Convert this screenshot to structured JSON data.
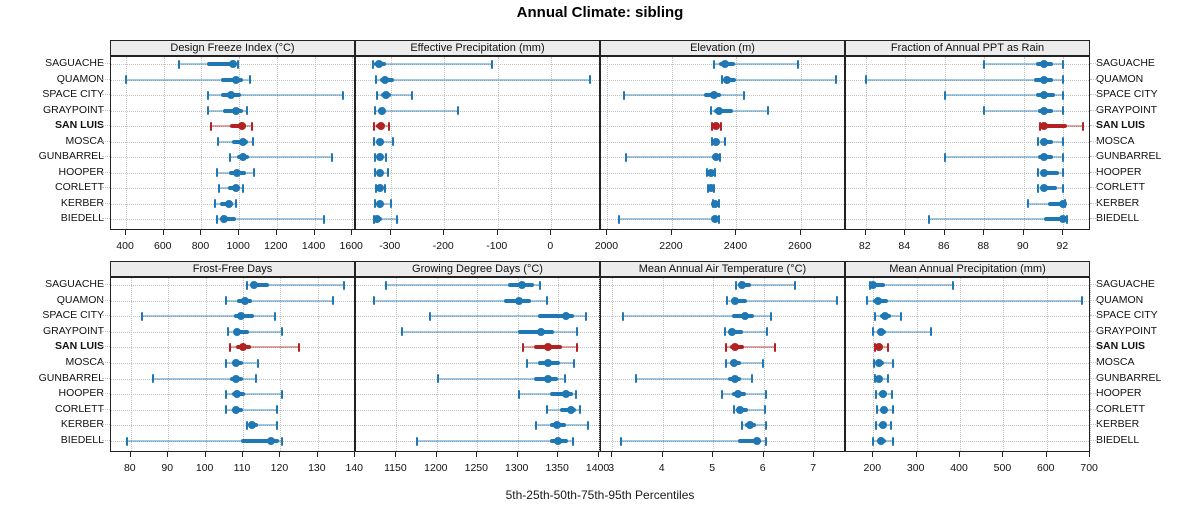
{
  "title": "Annual Climate: sibling",
  "footer": "5th-25th-50th-75th-95th Percentiles",
  "highlight_site": "SAN LUIS",
  "colors": {
    "blue": "#1f77b4",
    "blue_light": "rgba(31,119,180,0.4)",
    "red": "#b22222",
    "red_light": "rgba(178,34,34,0.4)",
    "strip_bg": "#ececec",
    "panel_border": "#222222",
    "grid": "#c3c3c3"
  },
  "sites": [
    "SAGUACHE",
    "QUAMON",
    "SPACE CITY",
    "GRAYPOINT",
    "SAN LUIS",
    "MOSCA",
    "GUNBARREL",
    "HOOPER",
    "CORLETT",
    "KERBER",
    "BIEDELL"
  ],
  "chart_data": [
    {
      "type": "dotplot-percentiles",
      "row": 0,
      "col": 0,
      "title": "Design Freeze Index (°C)",
      "ticks": [
        400,
        600,
        800,
        1000,
        1200,
        1400,
        1600
      ],
      "xlim": [
        320,
        1620
      ],
      "percentile_labels": [
        "p5",
        "p25",
        "p50",
        "p75",
        "p95"
      ],
      "values": [
        [
          680,
          830,
          965,
          985,
          995
        ],
        [
          400,
          905,
          985,
          1020,
          1060
        ],
        [
          835,
          905,
          955,
          1010,
          1550
        ],
        [
          835,
          915,
          985,
          1020,
          1040
        ],
        [
          850,
          950,
          1015,
          1035,
          1070
        ],
        [
          890,
          960,
          1020,
          1045,
          1075
        ],
        [
          950,
          990,
          1020,
          1050,
          1495
        ],
        [
          885,
          945,
          990,
          1035,
          1080
        ],
        [
          895,
          940,
          985,
          1005,
          1020
        ],
        [
          870,
          900,
          945,
          970,
          985
        ],
        [
          885,
          900,
          920,
          985,
          1450
        ]
      ]
    },
    {
      "type": "dotplot-percentiles",
      "row": 0,
      "col": 1,
      "title": "Effective Precipitation (mm)",
      "ticks": [
        -300,
        -200,
        -100,
        0
      ],
      "xlim": [
        -365,
        93
      ],
      "values": [
        [
          -334,
          -331,
          -322,
          -309,
          -111
        ],
        [
          -327,
          -320,
          -311,
          -294,
          72
        ],
        [
          -325,
          -318,
          -309,
          -300,
          -261
        ],
        [
          -330,
          -324,
          -317,
          -308,
          -174
        ],
        [
          -332,
          -327,
          -319,
          -312,
          -303
        ],
        [
          -331,
          -326,
          -320,
          -313,
          -296
        ],
        [
          -330,
          -325,
          -320,
          -315,
          -309
        ],
        [
          -329,
          -324,
          -320,
          -314,
          -306
        ],
        [
          -328,
          -325,
          -321,
          -316,
          -310
        ],
        [
          -329,
          -325,
          -321,
          -314,
          -300
        ],
        [
          -332,
          -329,
          -325,
          -316,
          -289
        ]
      ]
    },
    {
      "type": "dotplot-percentiles",
      "row": 0,
      "col": 2,
      "title": "Elevation (m)",
      "ticks": [
        2000,
        2200,
        2400,
        2600
      ],
      "xlim": [
        1980,
        2740
      ],
      "values": [
        [
          2330,
          2345,
          2365,
          2395,
          2590
        ],
        [
          2355,
          2362,
          2371,
          2400,
          2710
        ],
        [
          2052,
          2300,
          2330,
          2352,
          2425
        ],
        [
          2320,
          2332,
          2347,
          2390,
          2497
        ],
        [
          2325,
          2330,
          2337,
          2345,
          2352
        ],
        [
          2325,
          2331,
          2337,
          2348,
          2366
        ],
        [
          2057,
          2325,
          2337,
          2344,
          2350
        ],
        [
          2308,
          2314,
          2321,
          2329,
          2335
        ],
        [
          2312,
          2316,
          2321,
          2327,
          2332
        ],
        [
          2326,
          2330,
          2335,
          2340,
          2345
        ],
        [
          2036,
          2325,
          2335,
          2341,
          2347
        ]
      ]
    },
    {
      "type": "dotplot-percentiles",
      "row": 0,
      "col": 3,
      "title": "Fraction of Annual PPT as Rain",
      "ticks": [
        82,
        84,
        86,
        88,
        90,
        92
      ],
      "xlim": [
        81,
        93.4
      ],
      "values": [
        [
          88,
          90.6,
          91,
          91.5,
          92
        ],
        [
          82,
          90.5,
          91,
          91.5,
          92
        ],
        [
          86,
          90.6,
          91,
          91.6,
          92
        ],
        [
          88,
          90.7,
          91,
          91.5,
          92
        ],
        [
          90.8,
          90.9,
          91,
          92.2,
          93
        ],
        [
          90.7,
          90.9,
          91,
          91.5,
          92
        ],
        [
          86,
          90.7,
          91,
          91.5,
          92
        ],
        [
          90.7,
          90.9,
          91,
          91.8,
          92
        ],
        [
          90.7,
          90.9,
          91,
          91.7,
          92
        ],
        [
          90.2,
          91.2,
          92,
          92,
          92.1
        ],
        [
          85.2,
          91,
          92,
          92.1,
          92.2
        ]
      ]
    },
    {
      "type": "dotplot-percentiles",
      "row": 1,
      "col": 0,
      "title": "Frost-Free Days",
      "ticks": [
        80,
        90,
        100,
        110,
        120,
        130,
        140
      ],
      "xlim": [
        74.7,
        140.2
      ],
      "values": [
        [
          111,
          112,
          113,
          117,
          137
        ],
        [
          105.5,
          108.5,
          110.5,
          112.5,
          134
        ],
        [
          83,
          107.5,
          109.5,
          113,
          118.5
        ],
        [
          106,
          107.5,
          108.5,
          111.5,
          120.5
        ],
        [
          106.5,
          108,
          110,
          112,
          125
        ],
        [
          105.5,
          107,
          108,
          110,
          114
        ],
        [
          86,
          106.5,
          108,
          110,
          113.5
        ],
        [
          105.5,
          107,
          108.5,
          110.5,
          120.5
        ],
        [
          105.5,
          107,
          108,
          110,
          119
        ],
        [
          111,
          112,
          112.5,
          114,
          119
        ],
        [
          79,
          109.5,
          117.5,
          119.5,
          120.5
        ]
      ]
    },
    {
      "type": "dotplot-percentiles",
      "row": 1,
      "col": 1,
      "title": "Growing Degree Days (°C)",
      "ticks": [
        1150,
        1200,
        1250,
        1300,
        1350,
        1400
      ],
      "xlim": [
        1100,
        1403
      ],
      "values": [
        [
          1137,
          1288,
          1305,
          1320,
          1327
        ],
        [
          1122,
          1283,
          1301,
          1317,
          1336
        ],
        [
          1191,
          1325,
          1360,
          1370,
          1384
        ],
        [
          1157,
          1300,
          1329,
          1345,
          1373
        ],
        [
          1307,
          1320,
          1338,
          1355,
          1373
        ],
        [
          1311,
          1325,
          1338,
          1352,
          1369
        ],
        [
          1201,
          1320,
          1337,
          1350,
          1358
        ],
        [
          1301,
          1340,
          1360,
          1368,
          1372
        ],
        [
          1336,
          1352,
          1366,
          1372,
          1377
        ],
        [
          1323,
          1340,
          1348,
          1360,
          1387
        ],
        [
          1176,
          1340,
          1350,
          1362,
          1368
        ]
      ]
    },
    {
      "type": "dotplot-percentiles",
      "row": 1,
      "col": 2,
      "title": "Mean Annual Air Temperature (°C)",
      "ticks": [
        3,
        4,
        5,
        6,
        7
      ],
      "xlim": [
        2.78,
        7.63
      ],
      "values": [
        [
          5.45,
          5.5,
          5.57,
          5.75,
          6.63
        ],
        [
          5.28,
          5.35,
          5.43,
          5.68,
          7.46
        ],
        [
          3.21,
          5.38,
          5.64,
          5.81,
          6.15
        ],
        [
          5.23,
          5.3,
          5.38,
          5.6,
          6.06
        ],
        [
          5.26,
          5.33,
          5.44,
          5.62,
          6.22
        ],
        [
          5.25,
          5.33,
          5.41,
          5.55,
          5.99
        ],
        [
          3.48,
          5.3,
          5.43,
          5.55,
          5.76
        ],
        [
          5.18,
          5.38,
          5.5,
          5.65,
          6.04
        ],
        [
          5.41,
          5.47,
          5.53,
          5.7,
          6.02
        ],
        [
          5.57,
          5.64,
          5.72,
          5.85,
          6.05
        ],
        [
          3.18,
          5.5,
          5.86,
          5.95,
          6.05
        ]
      ]
    },
    {
      "type": "dotplot-percentiles",
      "row": 1,
      "col": 3,
      "title": "Mean Annual Precipitation (mm)",
      "ticks": [
        200,
        300,
        400,
        500,
        600,
        700
      ],
      "xlim": [
        137,
        702
      ],
      "values": [
        [
          193,
          197,
          200,
          228,
          384
        ],
        [
          185,
          200,
          210,
          235,
          682
        ],
        [
          203,
          215,
          228,
          240,
          264
        ],
        [
          200,
          208,
          218,
          230,
          333
        ],
        [
          203,
          208,
          214,
          222,
          233
        ],
        [
          202,
          208,
          214,
          224,
          245
        ],
        [
          203,
          208,
          214,
          220,
          233
        ],
        [
          207,
          214,
          222,
          231,
          242
        ],
        [
          209,
          216,
          224,
          233,
          245
        ],
        [
          207,
          214,
          222,
          230,
          241
        ],
        [
          200,
          209,
          218,
          230,
          245
        ]
      ]
    }
  ]
}
